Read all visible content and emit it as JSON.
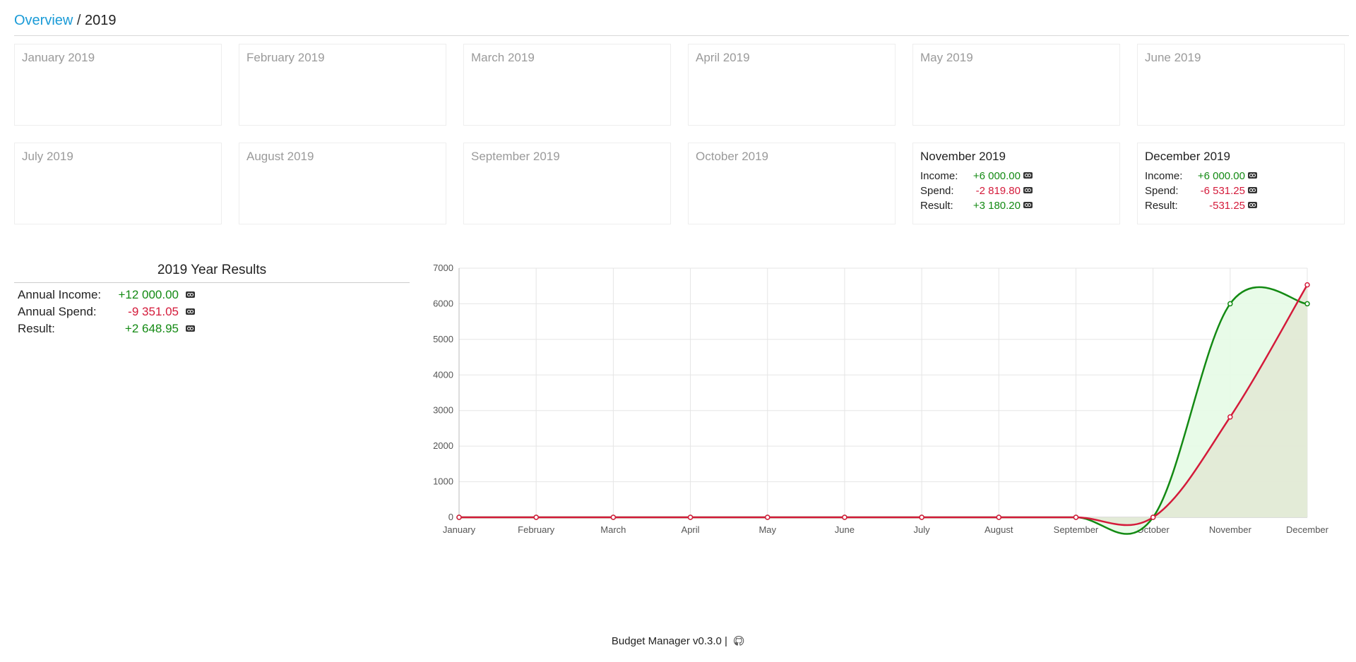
{
  "breadcrumb": {
    "root": "Overview",
    "separator": "/",
    "current": "2019"
  },
  "months": [
    {
      "title": "January 2019"
    },
    {
      "title": "February 2019"
    },
    {
      "title": "March 2019"
    },
    {
      "title": "April 2019"
    },
    {
      "title": "May 2019"
    },
    {
      "title": "June 2019"
    },
    {
      "title": "July 2019"
    },
    {
      "title": "August 2019"
    },
    {
      "title": "September 2019"
    },
    {
      "title": "October 2019"
    },
    {
      "title": "November 2019",
      "income_label": "Income:",
      "income": "+6 000.00",
      "spend_label": "Spend:",
      "spend": "-2 819.80",
      "result_label": "Result:",
      "result": "+3 180.20"
    },
    {
      "title": "December 2019",
      "income_label": "Income:",
      "income": "+6 000.00",
      "spend_label": "Spend:",
      "spend": "-6 531.25",
      "result_label": "Result:",
      "result": "-531.25"
    }
  ],
  "year_results": {
    "title": "2019 Year Results",
    "income_label": "Annual Income:",
    "income": "+12 000.00",
    "spend_label": "Annual Spend:",
    "spend": "-9 351.05",
    "result_label": "Result:",
    "result": "+2 648.95"
  },
  "icons": {
    "currency": "camera-money-icon",
    "github": "github-icon"
  },
  "colors": {
    "positive": "#138a13",
    "negative": "#d41a3a",
    "link": "#1a9bd7",
    "income_fill": "#e6fbe6",
    "spend_fill": "#e2e8d4"
  },
  "chart_data": {
    "type": "line",
    "categories": [
      "January",
      "February",
      "March",
      "April",
      "May",
      "June",
      "July",
      "August",
      "September",
      "October",
      "November",
      "December"
    ],
    "series": [
      {
        "values": [
          0,
          0,
          0,
          0,
          0,
          0,
          0,
          0,
          0,
          0,
          6000,
          6000
        ],
        "color": "#138a13"
      },
      {
        "values": [
          0,
          0,
          0,
          0,
          0,
          0,
          0,
          0,
          0,
          0,
          2819.8,
          6531.25
        ],
        "color": "#d41a3a"
      }
    ],
    "ylim": [
      0,
      7000
    ],
    "yticks": [
      "0",
      "1000",
      "2000",
      "3000",
      "4000",
      "5000",
      "6000",
      "7000"
    ],
    "grid": true
  },
  "footer": {
    "text": "Budget Manager v0.3.0 |"
  }
}
